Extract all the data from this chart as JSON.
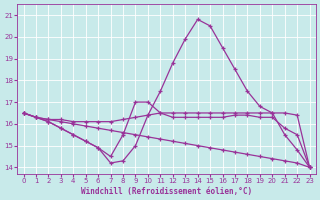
{
  "xlabel": "Windchill (Refroidissement éolien,°C)",
  "background_color": "#c8eaea",
  "line_color": "#993399",
  "grid_color": "#b8d8d8",
  "xlim": [
    -0.5,
    23.5
  ],
  "ylim": [
    13.7,
    21.5
  ],
  "xticks": [
    0,
    1,
    2,
    3,
    4,
    5,
    6,
    7,
    8,
    9,
    10,
    11,
    12,
    13,
    14,
    15,
    16,
    17,
    18,
    19,
    20,
    21,
    22,
    23
  ],
  "yticks": [
    14,
    15,
    16,
    17,
    18,
    19,
    20,
    21
  ],
  "series": [
    [
      16.5,
      16.3,
      16.2,
      16.2,
      16.1,
      16.1,
      16.1,
      16.1,
      16.2,
      16.3,
      16.4,
      16.5,
      16.5,
      16.5,
      16.5,
      16.5,
      16.5,
      16.5,
      16.5,
      16.5,
      16.5,
      16.5,
      16.4,
      14.0
    ],
    [
      16.5,
      16.3,
      16.2,
      16.1,
      16.0,
      15.9,
      15.8,
      15.7,
      15.6,
      15.5,
      15.4,
      15.3,
      15.2,
      15.1,
      15.0,
      14.9,
      14.8,
      14.7,
      14.6,
      14.5,
      14.4,
      14.3,
      14.2,
      14.0
    ],
    [
      16.5,
      16.3,
      16.1,
      15.8,
      15.5,
      15.2,
      14.9,
      14.2,
      14.3,
      15.0,
      16.4,
      17.5,
      18.8,
      19.9,
      20.8,
      20.5,
      19.5,
      18.5,
      17.5,
      16.8,
      16.5,
      15.5,
      14.8,
      14.0
    ],
    [
      16.5,
      16.3,
      16.1,
      15.8,
      15.5,
      15.2,
      14.9,
      14.5,
      15.5,
      17.0,
      17.0,
      16.5,
      16.3,
      16.3,
      16.3,
      16.3,
      16.3,
      16.4,
      16.4,
      16.3,
      16.3,
      15.8,
      15.5,
      14.0
    ]
  ]
}
